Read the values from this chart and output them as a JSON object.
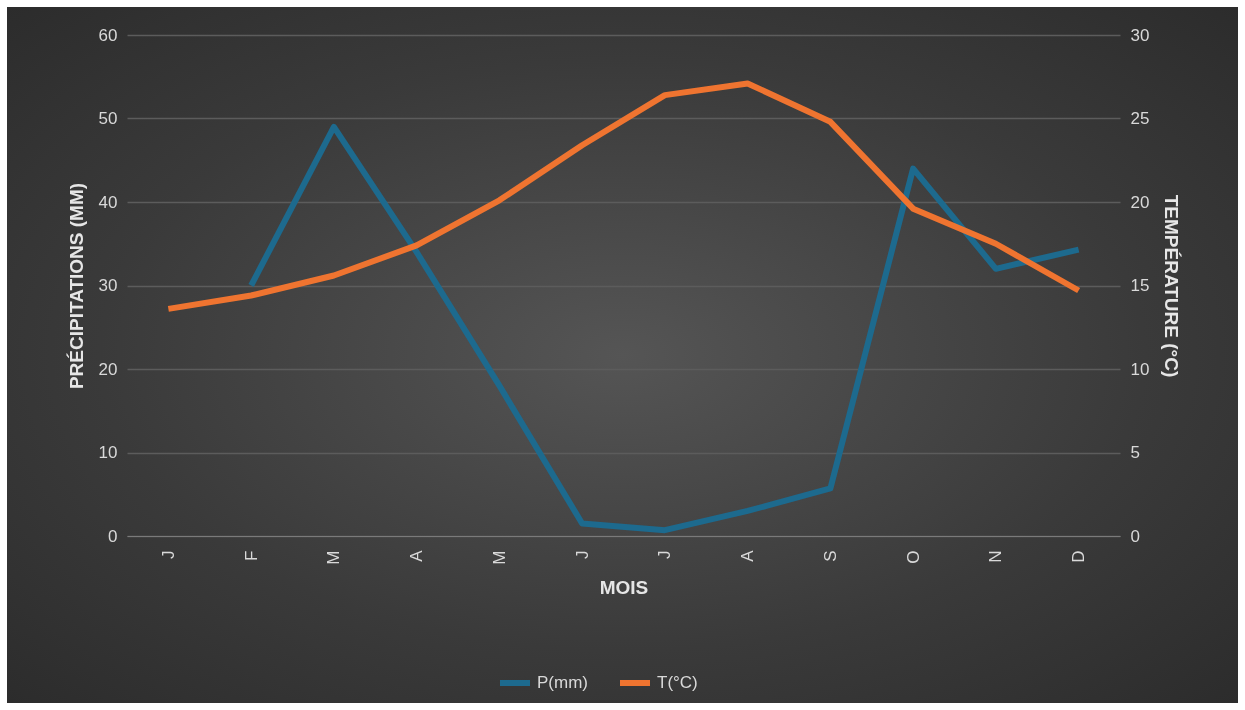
{
  "chart_data": {
    "type": "line",
    "xlabel": "MOIS",
    "ylabel": "PRÉCIPITATIONS (MM)",
    "y2label": "TEMPÉRATURE (°C)",
    "categories": [
      "J",
      "F",
      "M",
      "A",
      "M",
      "J",
      "J",
      "A",
      "S",
      "O",
      "N",
      "D"
    ],
    "series": [
      {
        "name": "P(mm)",
        "color": "#1d6a8e",
        "values": [
          null,
          30,
          49,
          34,
          18,
          1.5,
          0.7,
          3,
          5.7,
          44,
          32,
          34.3
        ]
      },
      {
        "name": "T(°C)",
        "color": "#ef7430",
        "axis": "y2",
        "values": [
          13.6,
          14.4,
          15.6,
          17.4,
          20.1,
          23.4,
          26.4,
          27.1,
          24.8,
          19.6,
          17.5,
          14.7
        ]
      }
    ],
    "ylim": [
      0,
      60
    ],
    "yticks": [
      0,
      10,
      20,
      30,
      40,
      50,
      60
    ],
    "y2lim": [
      0,
      30
    ],
    "y2ticks": [
      0,
      5,
      10,
      15,
      20,
      25,
      30
    ],
    "grid": "y",
    "legend": "bottom",
    "marker": "none",
    "line_style": "solid"
  }
}
